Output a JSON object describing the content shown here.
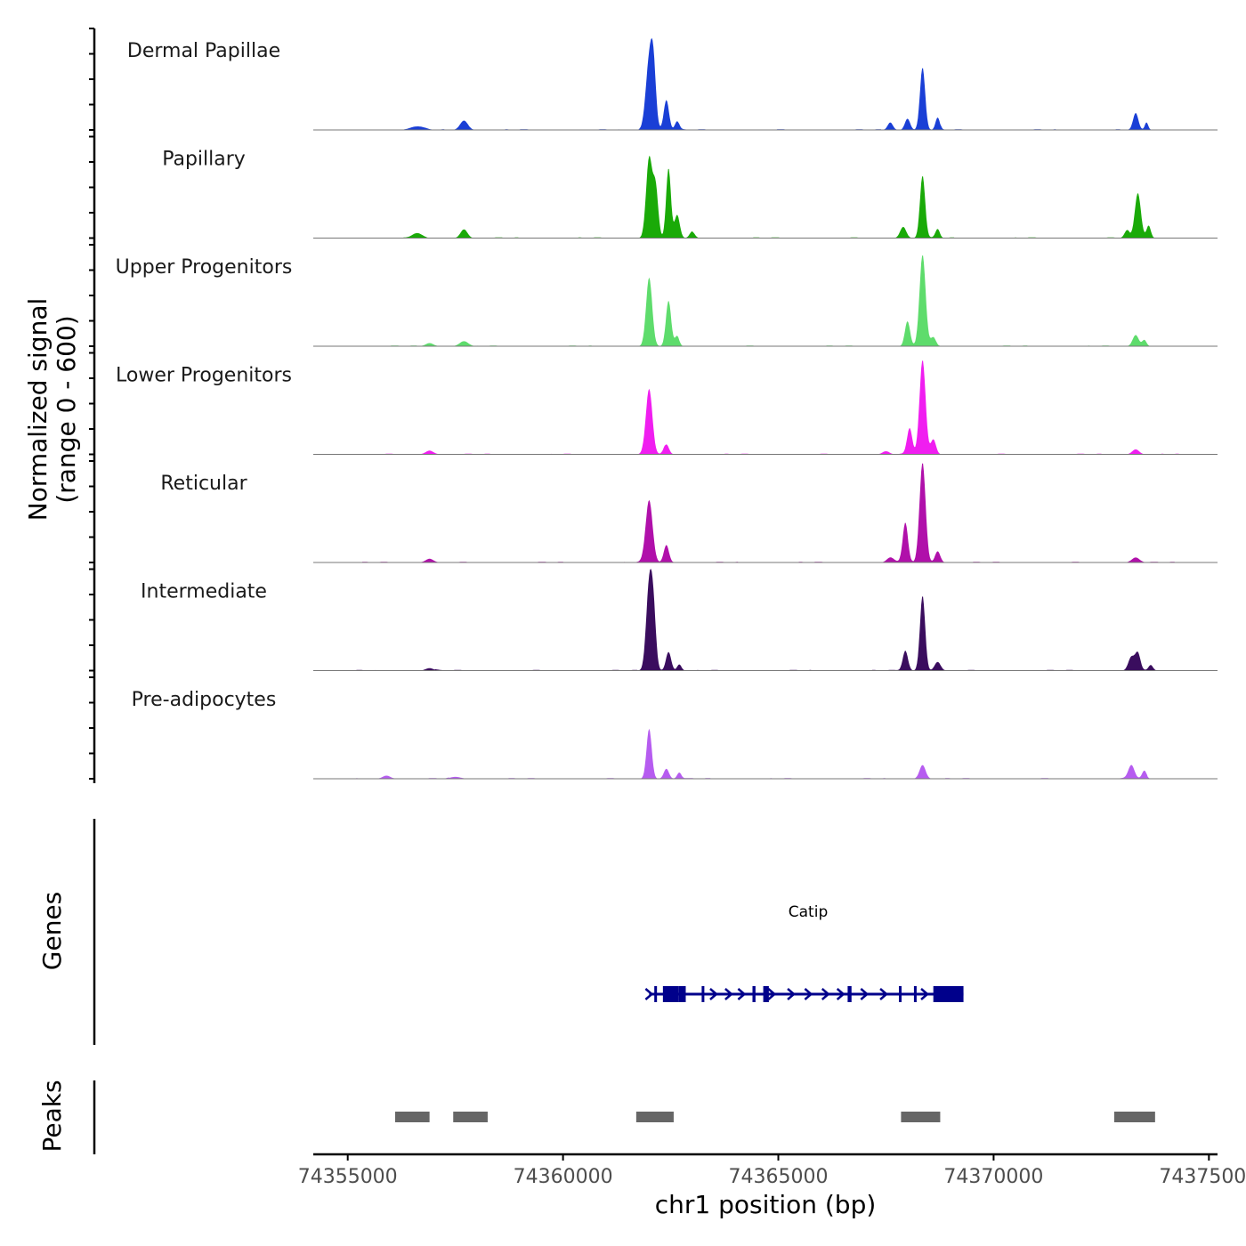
{
  "chart_data": {
    "type": "area",
    "title": "",
    "ylabel": "Normalized signal",
    "ylabel_range": "(range 0 - 600)",
    "ylim": [
      0,
      600
    ],
    "xlabel": "chr1 position (bp)",
    "xlim": [
      74354200,
      74375200
    ],
    "x_ticks": [
      74355000,
      74360000,
      74365000,
      74370000,
      74375000
    ],
    "x_tick_labels": [
      "74355000",
      "74360000",
      "74365000",
      "74370000",
      "74375000"
    ],
    "coverage_range": [
      74355200,
      74374300
    ],
    "tracks": [
      {
        "name": "Dermal Papillae",
        "color": "#1a3fd6",
        "peaks": [
          [
            74356600,
            28,
            150
          ],
          [
            74357700,
            75,
            90
          ],
          [
            74362000,
            530,
            80
          ],
          [
            74362100,
            420,
            60
          ],
          [
            74362400,
            240,
            60
          ],
          [
            74362650,
            70,
            50
          ],
          [
            74367600,
            60,
            60
          ],
          [
            74368000,
            90,
            60
          ],
          [
            74368350,
            500,
            60
          ],
          [
            74368700,
            100,
            50
          ],
          [
            74373300,
            130,
            60
          ],
          [
            74373550,
            60,
            40
          ]
        ]
      },
      {
        "name": "Papillary",
        "color": "#1aaa08",
        "peaks": [
          [
            74356600,
            35,
            120
          ],
          [
            74357700,
            70,
            80
          ],
          [
            74362000,
            640,
            70
          ],
          [
            74362150,
            400,
            60
          ],
          [
            74362450,
            560,
            55
          ],
          [
            74362650,
            180,
            60
          ],
          [
            74363000,
            50,
            60
          ],
          [
            74367900,
            90,
            70
          ],
          [
            74368350,
            500,
            60
          ],
          [
            74368700,
            70,
            50
          ],
          [
            74373100,
            60,
            60
          ],
          [
            74373350,
            360,
            70
          ],
          [
            74373600,
            100,
            50
          ]
        ]
      },
      {
        "name": "Upper Progenitors",
        "color": "#5edc6c",
        "peaks": [
          [
            74357700,
            40,
            100
          ],
          [
            74356900,
            25,
            90
          ],
          [
            74362000,
            550,
            70
          ],
          [
            74362450,
            360,
            60
          ],
          [
            74362650,
            80,
            50
          ],
          [
            74368000,
            200,
            60
          ],
          [
            74368350,
            730,
            70
          ],
          [
            74368600,
            70,
            60
          ],
          [
            74373300,
            90,
            70
          ],
          [
            74373500,
            50,
            50
          ]
        ]
      },
      {
        "name": "Lower Progenitors",
        "color": "#f01ef0",
        "peaks": [
          [
            74356900,
            30,
            90
          ],
          [
            74362000,
            520,
            75
          ],
          [
            74362400,
            80,
            60
          ],
          [
            74367500,
            25,
            80
          ],
          [
            74368050,
            210,
            60
          ],
          [
            74368350,
            750,
            70
          ],
          [
            74368600,
            120,
            60
          ],
          [
            74373300,
            40,
            80
          ]
        ]
      },
      {
        "name": "Reticular",
        "color": "#b010aa",
        "peaks": [
          [
            74356900,
            30,
            90
          ],
          [
            74362000,
            500,
            80
          ],
          [
            74362400,
            140,
            60
          ],
          [
            74367600,
            40,
            80
          ],
          [
            74367950,
            320,
            60
          ],
          [
            74368350,
            800,
            70
          ],
          [
            74368700,
            90,
            60
          ],
          [
            74373300,
            40,
            90
          ]
        ]
      },
      {
        "name": "Intermediate",
        "color": "#3a0d5e",
        "peaks": [
          [
            74356900,
            20,
            90
          ],
          [
            74362000,
            660,
            70
          ],
          [
            74362100,
            420,
            60
          ],
          [
            74362450,
            150,
            60
          ],
          [
            74362700,
            50,
            50
          ],
          [
            74367950,
            160,
            60
          ],
          [
            74368350,
            600,
            60
          ],
          [
            74368700,
            70,
            70
          ],
          [
            74373200,
            110,
            70
          ],
          [
            74373350,
            140,
            60
          ],
          [
            74373650,
            40,
            50
          ]
        ]
      },
      {
        "name": "Pre-adipocytes",
        "color": "#b65cf0",
        "peaks": [
          [
            74355900,
            25,
            90
          ],
          [
            74357500,
            15,
            120
          ],
          [
            74362000,
            400,
            60
          ],
          [
            74362400,
            80,
            60
          ],
          [
            74362700,
            50,
            50
          ],
          [
            74368350,
            110,
            70
          ],
          [
            74373200,
            110,
            70
          ],
          [
            74373500,
            60,
            50
          ]
        ]
      }
    ],
    "genes_label": "Genes",
    "genes": [
      {
        "name": "Catip",
        "start": 74362000,
        "end": 74369300,
        "color": "#00008b",
        "exons": [
          [
            74362120,
            74362180
          ],
          [
            74362320,
            74362680
          ],
          [
            74362680,
            74362850
          ],
          [
            74363220,
            74363280
          ],
          [
            74364400,
            74364470
          ],
          [
            74364650,
            74364780
          ],
          [
            74366610,
            74366700
          ],
          [
            74367800,
            74367850
          ],
          [
            74368150,
            74368210
          ],
          [
            74368600,
            74369300
          ]
        ],
        "arrows": [
          74362000,
          74363500,
          74363850,
          74364150,
          74364850,
          74365300,
          74365700,
          74366100,
          74366450,
          74367000,
          74367450,
          74368400
        ]
      }
    ],
    "peaks_label": "Peaks",
    "peaks_color": "#666666",
    "peak_regions": [
      [
        74356100,
        74356900
      ],
      [
        74357450,
        74358250
      ],
      [
        74361700,
        74362570
      ],
      [
        74367850,
        74368760
      ],
      [
        74372800,
        74373750
      ]
    ]
  }
}
